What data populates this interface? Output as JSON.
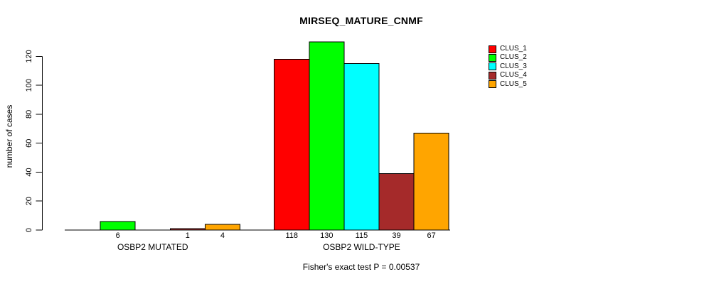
{
  "title": "MIRSEQ_MATURE_CNMF",
  "chart_data": {
    "type": "bar",
    "title": "MIRSEQ_MATURE_CNMF",
    "xlabel": "",
    "ylabel": "number of cases",
    "groups": [
      "OSBP2 MUTATED",
      "OSBP2 WILD-TYPE"
    ],
    "series": [
      {
        "name": "CLUS_1",
        "color": "#FF0000",
        "values": [
          0,
          118
        ]
      },
      {
        "name": "CLUS_2",
        "color": "#00FF00",
        "values": [
          6,
          130
        ]
      },
      {
        "name": "CLUS_3",
        "color": "#00FFFF",
        "values": [
          0,
          115
        ]
      },
      {
        "name": "CLUS_4",
        "color": "#A52A2A",
        "values": [
          1,
          39
        ]
      },
      {
        "name": "CLUS_5",
        "color": "#FFA500",
        "values": [
          4,
          67
        ]
      }
    ],
    "yticks": [
      0,
      20,
      40,
      60,
      80,
      100,
      120
    ],
    "ylim": [
      0,
      130
    ],
    "grid": false,
    "legend_position": "top-right",
    "bar_value_labels_shown_for_nonzero_only": true,
    "annotation": "Fisher's exact test P = 0.00537"
  }
}
